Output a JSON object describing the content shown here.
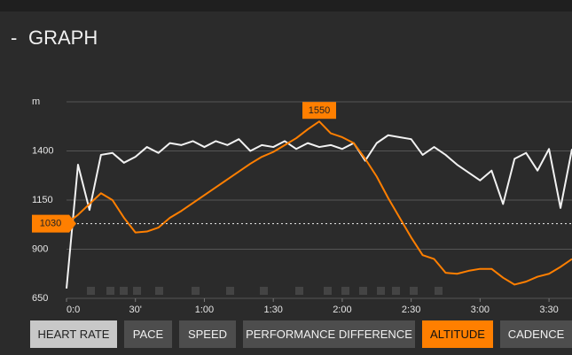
{
  "header": {
    "title": "GRAPH"
  },
  "buttons": [
    "PACE",
    "SPEED",
    "PERFORMANCE DIFFERENCE",
    "CADENCE"
  ],
  "chart_data": {
    "type": "line",
    "x": [
      0,
      5,
      10,
      15,
      20,
      25,
      30,
      35,
      40,
      45,
      50,
      55,
      60,
      65,
      70,
      75,
      80,
      85,
      90,
      95,
      100,
      105,
      110,
      115,
      120,
      125,
      130,
      135,
      140,
      145,
      150,
      155,
      160,
      165,
      170,
      175,
      180,
      185,
      190,
      195,
      200,
      205,
      210,
      215,
      220
    ],
    "series": [
      {
        "name": "HEART RATE",
        "color": "#f2f2f2",
        "values": [
          700,
          1330,
          1100,
          1380,
          1390,
          1340,
          1370,
          1420,
          1390,
          1440,
          1430,
          1450,
          1420,
          1450,
          1430,
          1460,
          1400,
          1430,
          1420,
          1450,
          1410,
          1440,
          1420,
          1430,
          1410,
          1440,
          1350,
          1440,
          1480,
          1470,
          1460,
          1380,
          1420,
          1380,
          1330,
          1290,
          1250,
          1300,
          1130,
          1360,
          1390,
          1300,
          1410,
          1110,
          1410
        ]
      },
      {
        "name": "ALTITUDE",
        "color": "#ff7f00",
        "values": [
          1030,
          1075,
          1130,
          1185,
          1150,
          1060,
          985,
          990,
          1010,
          1060,
          1095,
          1135,
          1175,
          1215,
          1255,
          1295,
          1335,
          1370,
          1395,
          1430,
          1465,
          1510,
          1550,
          1490,
          1470,
          1440,
          1360,
          1270,
          1160,
          1060,
          960,
          870,
          850,
          780,
          775,
          790,
          800,
          800,
          755,
          720,
          735,
          760,
          775,
          810,
          850
        ]
      }
    ],
    "xlim": [
      0,
      220
    ],
    "xticks": [
      {
        "value": 0,
        "label": "0:0"
      },
      {
        "value": 30,
        "label": "30'"
      },
      {
        "value": 60,
        "label": "1:00"
      },
      {
        "value": 90,
        "label": "1:30"
      },
      {
        "value": 120,
        "label": "2:00"
      },
      {
        "value": 150,
        "label": "2:30"
      },
      {
        "value": 180,
        "label": "3:00"
      },
      {
        "value": 210,
        "label": "3:30"
      }
    ],
    "ylim": [
      650,
      1650
    ],
    "yticks": [
      650,
      900,
      1150,
      1400,
      {
        "value": 1650,
        "label": "m"
      }
    ],
    "grid": true,
    "peak_label": 1550,
    "reference_value": 1030
  }
}
